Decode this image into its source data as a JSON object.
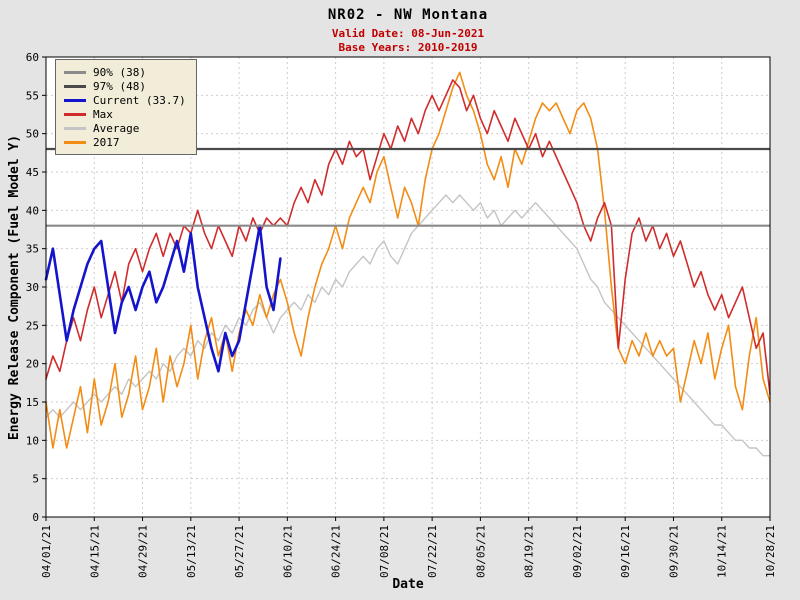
{
  "header": {
    "title": "NR02 - NW Montana",
    "valid_date": "Valid Date: 08-Jun-2021",
    "base_years": "Base Years: 2010-2019"
  },
  "colors": {
    "page_background": "#e4e4e4",
    "plot_background": "#ffffff",
    "grid": "#cdcdcd",
    "frame": "#000000",
    "subtitle_red": "#c00000",
    "legend_background": "#f1edd8"
  },
  "legend": {
    "items": [
      {
        "label": "90% (38)",
        "color": "#8a8a8a"
      },
      {
        "label": "97% (48)",
        "color": "#4a4a4a"
      },
      {
        "label": "Current (33.7)",
        "color": "#1414cc"
      },
      {
        "label": "Max",
        "color": "#d02c2c"
      },
      {
        "label": "Average",
        "color": "#c4c4c4"
      },
      {
        "label": "2017",
        "color": "#f28c14"
      }
    ]
  },
  "chart_data": {
    "type": "line",
    "title": "NR02 - NW Montana",
    "subtitle_valid_date": "Valid Date: 08-Jun-2021",
    "subtitle_base_years": "Base Years: 2010-2019",
    "xlabel": "Date",
    "ylabel": "Energy Release Component (Fuel Model Y)",
    "grid": true,
    "legend_position": "top-left",
    "ylim": [
      0,
      60
    ],
    "ytick_values": [
      0,
      5,
      10,
      15,
      20,
      25,
      30,
      35,
      40,
      45,
      50,
      55,
      60
    ],
    "x_unit": "days since 04/01/21",
    "xlim_days": [
      0,
      210
    ],
    "xtick_interval_days": 14,
    "xtick_labels": [
      "04/01/21",
      "04/15/21",
      "04/29/21",
      "05/13/21",
      "05/27/21",
      "06/10/21",
      "06/24/21",
      "07/08/21",
      "07/22/21",
      "08/05/21",
      "08/19/21",
      "09/02/21",
      "09/16/21",
      "09/30/21",
      "10/14/21",
      "10/28/21"
    ],
    "reference_lines": [
      {
        "label": "90% (38)",
        "value": 38,
        "color": "#8a8a8a",
        "width": 2.2
      },
      {
        "label": "97% (48)",
        "value": 48,
        "color": "#4a4a4a",
        "width": 2.2
      }
    ],
    "series": [
      {
        "name": "Average",
        "color": "#c4c4c4",
        "width": 1.4,
        "x0": 0,
        "step": 2,
        "values": [
          13,
          14,
          13,
          14,
          15,
          14,
          15,
          16,
          15,
          16,
          17,
          16,
          18,
          17,
          18,
          19,
          18,
          20,
          19,
          21,
          22,
          21,
          23,
          22,
          24,
          23,
          25,
          24,
          26,
          25,
          27,
          28,
          26,
          24,
          26,
          27,
          28,
          27,
          29,
          28,
          30,
          29,
          31,
          30,
          32,
          33,
          34,
          33,
          35,
          36,
          34,
          33,
          35,
          37,
          38,
          39,
          40,
          41,
          42,
          41,
          42,
          41,
          40,
          41,
          39,
          40,
          38,
          39,
          40,
          39,
          40,
          41,
          40,
          39,
          38,
          37,
          36,
          35,
          33,
          31,
          30,
          28,
          27,
          26,
          25,
          24,
          23,
          22,
          21,
          20,
          19,
          18,
          17,
          16,
          15,
          14,
          13,
          12,
          12,
          11,
          10,
          10,
          9,
          9,
          8,
          8
        ]
      },
      {
        "name": "2017",
        "color": "#f28c14",
        "width": 1.6,
        "x0": 0,
        "step": 2,
        "values": [
          15,
          9,
          14,
          9,
          13,
          17,
          11,
          18,
          12,
          15,
          20,
          13,
          16,
          21,
          14,
          17,
          22,
          15,
          21,
          17,
          20,
          25,
          18,
          23,
          26,
          21,
          24,
          19,
          24,
          27,
          25,
          29,
          26,
          29,
          31,
          28,
          24,
          21,
          26,
          30,
          33,
          35,
          38,
          35,
          39,
          41,
          43,
          41,
          45,
          47,
          43,
          39,
          43,
          41,
          38,
          44,
          48,
          50,
          53,
          56,
          58,
          55,
          53,
          50,
          46,
          44,
          47,
          43,
          48,
          46,
          49,
          52,
          54,
          53,
          54,
          52,
          50,
          53,
          54,
          52,
          48,
          40,
          30,
          22,
          20,
          23,
          21,
          24,
          21,
          23,
          21,
          22,
          15,
          19,
          23,
          20,
          24,
          18,
          22,
          25,
          17,
          14,
          21,
          26,
          18,
          15
        ]
      },
      {
        "name": "Max",
        "color": "#d02c2c",
        "width": 1.6,
        "x0": 0,
        "step": 2,
        "values": [
          18,
          21,
          19,
          23,
          26,
          23,
          27,
          30,
          26,
          29,
          32,
          28,
          33,
          35,
          32,
          35,
          37,
          34,
          37,
          35,
          38,
          37,
          40,
          37,
          35,
          38,
          36,
          34,
          38,
          36,
          39,
          37,
          39,
          38,
          39,
          38,
          41,
          43,
          41,
          44,
          42,
          46,
          48,
          46,
          49,
          47,
          48,
          44,
          47,
          50,
          48,
          51,
          49,
          52,
          50,
          53,
          55,
          53,
          55,
          57,
          56,
          53,
          55,
          52,
          50,
          53,
          51,
          49,
          52,
          50,
          48,
          50,
          47,
          49,
          47,
          45,
          43,
          41,
          38,
          36,
          39,
          41,
          38,
          22,
          31,
          37,
          39,
          36,
          38,
          35,
          37,
          34,
          36,
          33,
          30,
          32,
          29,
          27,
          29,
          26,
          28,
          30,
          26,
          22,
          24,
          16
        ]
      },
      {
        "name": "Current (33.7)",
        "color": "#1414cc",
        "width": 2.6,
        "x0": 0,
        "step": 2,
        "values": [
          31,
          35,
          29,
          23,
          27,
          30,
          33,
          35,
          36,
          30,
          24,
          28,
          30,
          27,
          30,
          32,
          28,
          30,
          33,
          36,
          32,
          37,
          30,
          26,
          22,
          19,
          24,
          21,
          23,
          28,
          33,
          38,
          30,
          27,
          33.7
        ]
      }
    ]
  }
}
